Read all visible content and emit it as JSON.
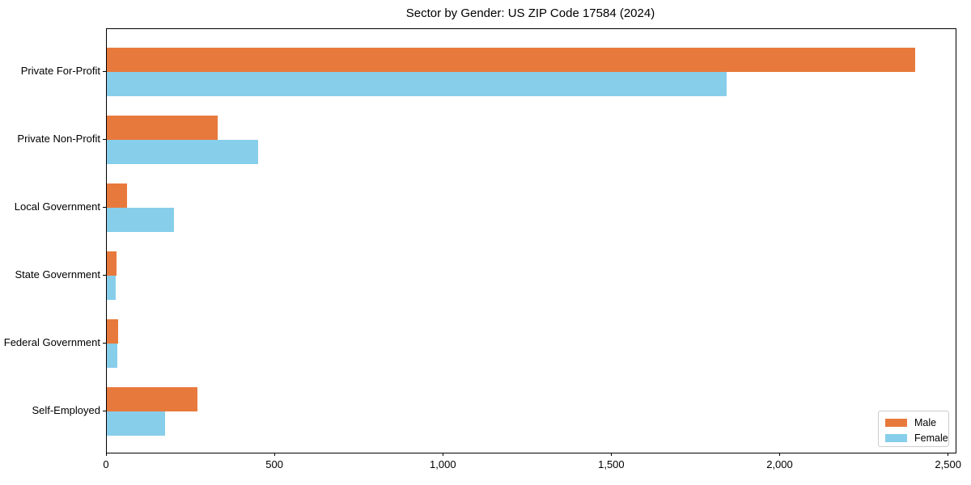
{
  "figure": {
    "background_color": "#ffffff",
    "text_color": "#000000"
  },
  "chart_data": {
    "type": "bar",
    "orientation": "horizontal",
    "title": "Sector by Gender: US ZIP Code 17584 (2024)",
    "categories": [
      "Private For-Profit",
      "Private Non-Profit",
      "Local Government",
      "State Government",
      "Federal Government",
      "Self-Employed"
    ],
    "categories_order": "top-to-bottom",
    "series": [
      {
        "name": "Male",
        "color": "#E8793C",
        "values": [
          2400,
          330,
          60,
          28,
          33,
          270
        ]
      },
      {
        "name": "Female",
        "color": "#87CEEB",
        "values": [
          1840,
          450,
          200,
          26,
          30,
          172
        ]
      }
    ],
    "xlabel": "",
    "ylabel": "",
    "xlim": [
      0,
      2520
    ],
    "xticks": [
      0,
      500,
      1000,
      1500,
      2000,
      2500
    ],
    "xtick_labels": [
      "0",
      "500",
      "1,000",
      "1,500",
      "2,000",
      "2,500"
    ],
    "grid": false,
    "legend": {
      "position": "lower right",
      "labels": [
        "Male",
        "Female"
      ]
    }
  }
}
